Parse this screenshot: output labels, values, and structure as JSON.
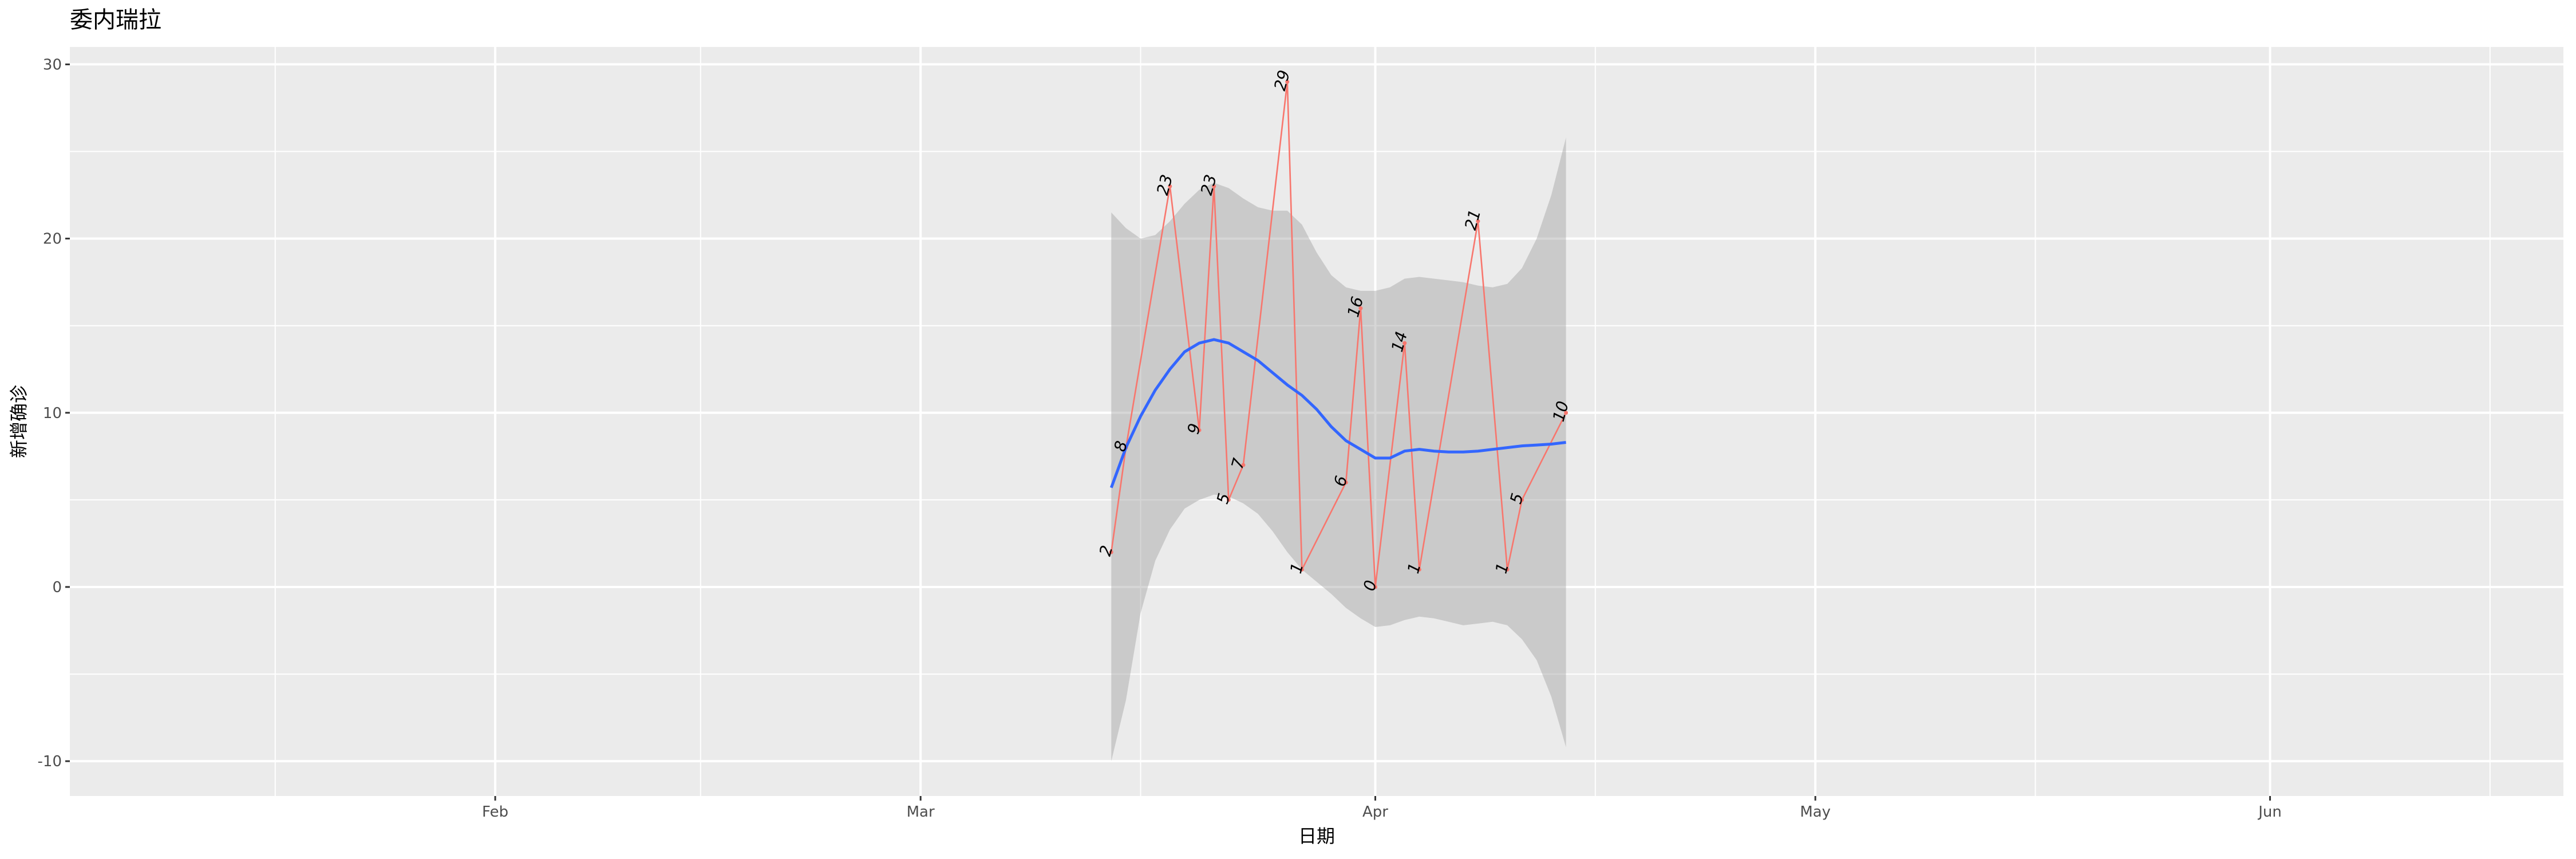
{
  "chart_data": {
    "type": "line",
    "title": "委内瑞拉",
    "xlabel": "日期",
    "ylabel": "新增确诊",
    "x_axis": {
      "type": "date",
      "range": [
        "2020-01-03",
        "2020-06-21"
      ],
      "ticks": [
        {
          "date": "2020-02-01",
          "label": "Feb"
        },
        {
          "date": "2020-03-01",
          "label": "Mar"
        },
        {
          "date": "2020-04-01",
          "label": "Apr"
        },
        {
          "date": "2020-05-01",
          "label": "May"
        },
        {
          "date": "2020-06-01",
          "label": "Jun"
        }
      ],
      "minor_ticks": [
        "2020-01-17",
        "2020-02-15",
        "2020-03-16",
        "2020-04-16",
        "2020-05-16",
        "2020-06-16"
      ]
    },
    "y_axis": {
      "range": [
        -12,
        31
      ],
      "ticks": [
        -10,
        0,
        10,
        20,
        30
      ],
      "minor_ticks": [
        -5,
        5,
        15,
        25
      ]
    },
    "grid": true,
    "legend": "none",
    "series": [
      {
        "kind": "observed",
        "color": "#F8766D",
        "points": [
          {
            "x": "2020-03-14",
            "y": 2
          },
          {
            "x": "2020-03-15",
            "y": 8
          },
          {
            "x": "2020-03-18",
            "y": 23
          },
          {
            "x": "2020-03-20",
            "y": 9
          },
          {
            "x": "2020-03-21",
            "y": 23
          },
          {
            "x": "2020-03-22",
            "y": 5
          },
          {
            "x": "2020-03-23",
            "y": 7
          },
          {
            "x": "2020-03-26",
            "y": 29
          },
          {
            "x": "2020-03-27",
            "y": 1
          },
          {
            "x": "2020-03-30",
            "y": 6
          },
          {
            "x": "2020-03-31",
            "y": 16
          },
          {
            "x": "2020-04-01",
            "y": 0
          },
          {
            "x": "2020-04-03",
            "y": 14
          },
          {
            "x": "2020-04-04",
            "y": 1
          },
          {
            "x": "2020-04-08",
            "y": 21
          },
          {
            "x": "2020-04-10",
            "y": 1
          },
          {
            "x": "2020-04-11",
            "y": 5
          },
          {
            "x": "2020-04-14",
            "y": 10
          }
        ]
      },
      {
        "kind": "smooth",
        "color": "#3366FF",
        "band_color": "#999999",
        "points": [
          {
            "x": "2020-03-14",
            "y": 5.7,
            "ymin": -10,
            "ymax": 21.5
          },
          {
            "x": "2020-03-15",
            "y": 8.0,
            "ymin": -6.5,
            "ymax": 20.6
          },
          {
            "x": "2020-03-16",
            "y": 9.8,
            "ymin": -1.5,
            "ymax": 20.0
          },
          {
            "x": "2020-03-17",
            "y": 11.3,
            "ymin": 1.5,
            "ymax": 20.2
          },
          {
            "x": "2020-03-18",
            "y": 12.5,
            "ymin": 3.3,
            "ymax": 21.0
          },
          {
            "x": "2020-03-19",
            "y": 13.5,
            "ymin": 4.5,
            "ymax": 22.0
          },
          {
            "x": "2020-03-20",
            "y": 14.0,
            "ymin": 5.0,
            "ymax": 22.8
          },
          {
            "x": "2020-03-21",
            "y": 14.2,
            "ymin": 5.3,
            "ymax": 23.2
          },
          {
            "x": "2020-03-22",
            "y": 14.0,
            "ymin": 5.2,
            "ymax": 22.9
          },
          {
            "x": "2020-03-23",
            "y": 13.5,
            "ymin": 4.8,
            "ymax": 22.3
          },
          {
            "x": "2020-03-24",
            "y": 13.0,
            "ymin": 4.2,
            "ymax": 21.8
          },
          {
            "x": "2020-03-25",
            "y": 12.3,
            "ymin": 3.2,
            "ymax": 21.6
          },
          {
            "x": "2020-03-26",
            "y": 11.6,
            "ymin": 2.0,
            "ymax": 21.6
          },
          {
            "x": "2020-03-27",
            "y": 11.0,
            "ymin": 1.0,
            "ymax": 20.8
          },
          {
            "x": "2020-03-28",
            "y": 10.2,
            "ymin": 0.3,
            "ymax": 19.2
          },
          {
            "x": "2020-03-29",
            "y": 9.2,
            "ymin": -0.4,
            "ymax": 17.9
          },
          {
            "x": "2020-03-30",
            "y": 8.4,
            "ymin": -1.2,
            "ymax": 17.2
          },
          {
            "x": "2020-03-31",
            "y": 7.9,
            "ymin": -1.8,
            "ymax": 17.0
          },
          {
            "x": "2020-04-01",
            "y": 7.4,
            "ymin": -2.3,
            "ymax": 17.0
          },
          {
            "x": "2020-04-02",
            "y": 7.4,
            "ymin": -2.2,
            "ymax": 17.2
          },
          {
            "x": "2020-04-03",
            "y": 7.8,
            "ymin": -1.9,
            "ymax": 17.7
          },
          {
            "x": "2020-04-04",
            "y": 7.9,
            "ymin": -1.7,
            "ymax": 17.8
          },
          {
            "x": "2020-04-05",
            "y": 7.8,
            "ymin": -1.8,
            "ymax": 17.7
          },
          {
            "x": "2020-04-06",
            "y": 7.75,
            "ymin": -2.0,
            "ymax": 17.6
          },
          {
            "x": "2020-04-07",
            "y": 7.75,
            "ymin": -2.2,
            "ymax": 17.5
          },
          {
            "x": "2020-04-08",
            "y": 7.8,
            "ymin": -2.1,
            "ymax": 17.3
          },
          {
            "x": "2020-04-09",
            "y": 7.9,
            "ymin": -2.0,
            "ymax": 17.2
          },
          {
            "x": "2020-04-10",
            "y": 8.0,
            "ymin": -2.2,
            "ymax": 17.4
          },
          {
            "x": "2020-04-11",
            "y": 8.1,
            "ymin": -3.0,
            "ymax": 18.3
          },
          {
            "x": "2020-04-12",
            "y": 8.15,
            "ymin": -4.2,
            "ymax": 20.0
          },
          {
            "x": "2020-04-13",
            "y": 8.2,
            "ymin": -6.3,
            "ymax": 22.5
          },
          {
            "x": "2020-04-14",
            "y": 8.3,
            "ymin": -9.2,
            "ymax": 25.8
          }
        ]
      }
    ]
  }
}
